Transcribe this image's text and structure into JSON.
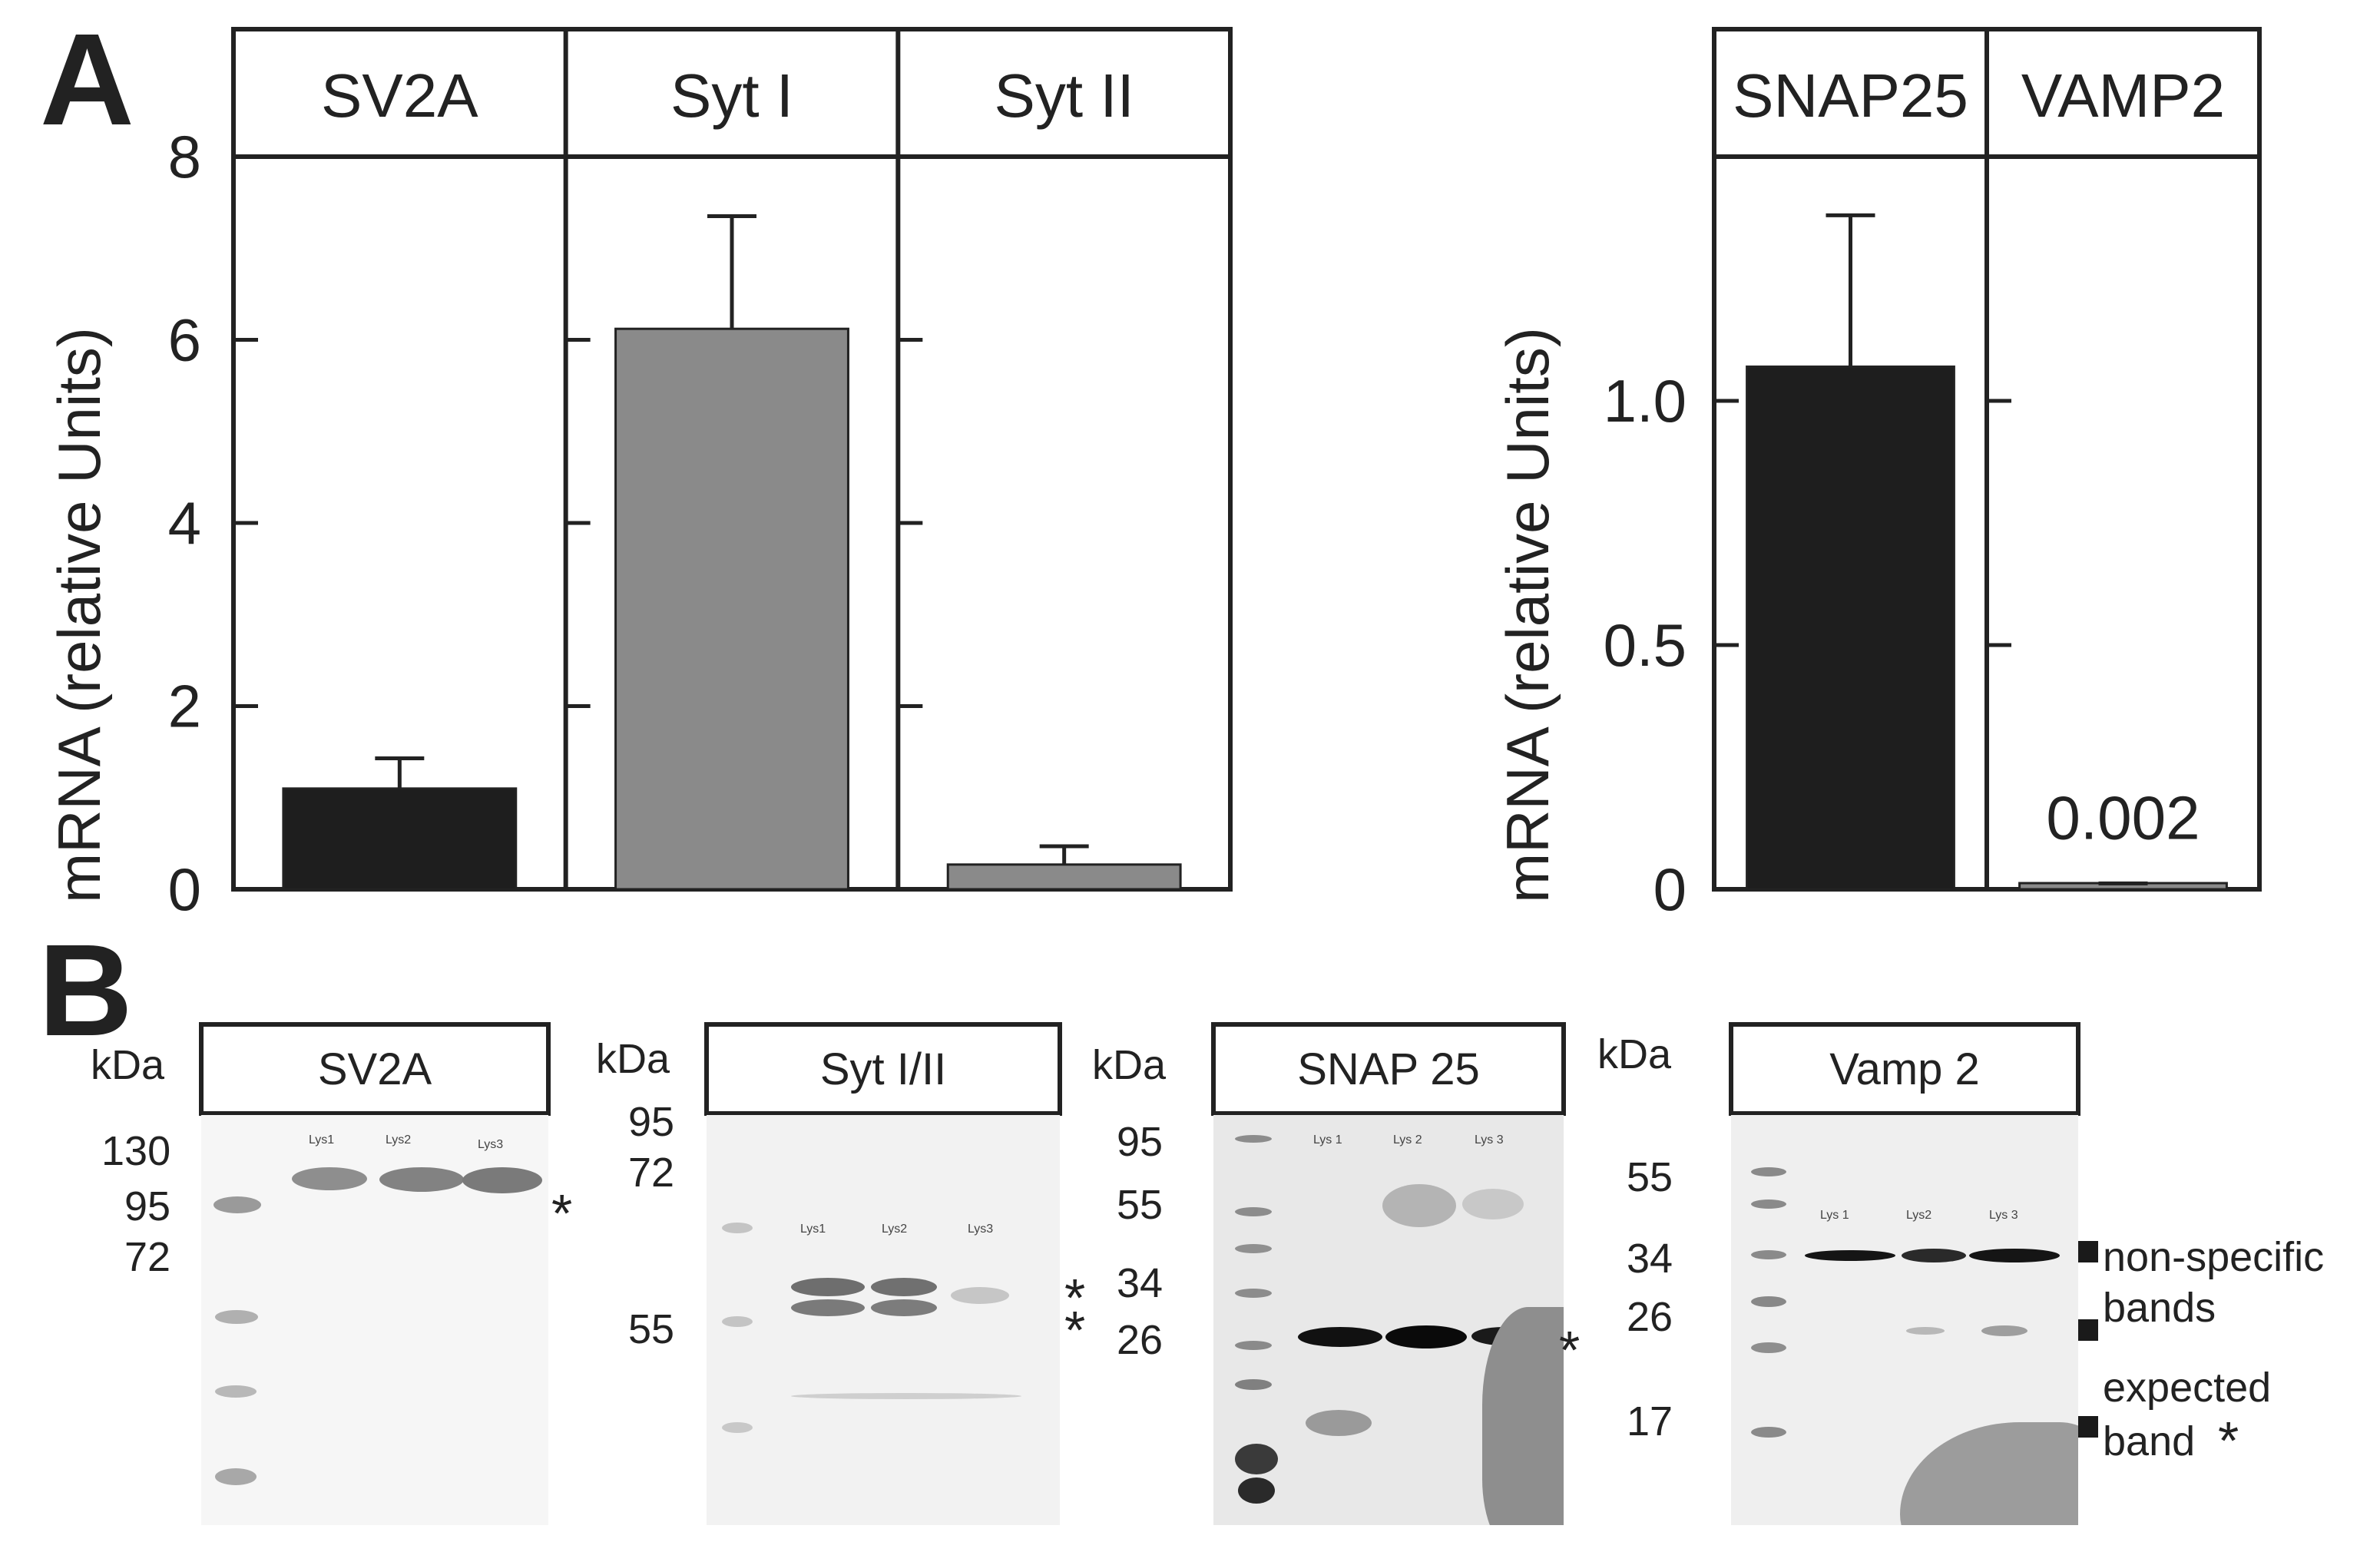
{
  "chart_data": [
    {
      "type": "bar",
      "panel": "A",
      "ylabel": "mRNA (relative Units)",
      "ylim": [
        0,
        8
      ],
      "yticks": [
        0,
        2,
        4,
        6,
        8
      ],
      "ytick_labels": [
        "0",
        "2",
        "4",
        "6",
        "8"
      ],
      "facets": [
        {
          "title": "SV2A",
          "value": 1.1,
          "error": 0.33,
          "color": "#1e1e1e"
        },
        {
          "title": "Syt I",
          "value": 6.12,
          "error": 1.23,
          "color": "#8a8a8a"
        },
        {
          "title": "Syt II",
          "value": 0.27,
          "error": 0.2,
          "color": "#8a8a8a"
        }
      ],
      "grid": false
    },
    {
      "type": "bar",
      "panel": "A",
      "ylabel": "mRNA (relative Units)",
      "ylim": [
        0,
        1.5
      ],
      "yticks": [
        0,
        0.5,
        1.0
      ],
      "ytick_labels": [
        "0",
        "0.5",
        "1.0"
      ],
      "facets": [
        {
          "title": "SNAP25",
          "value": 1.07,
          "error": 0.31,
          "color": "#1e1e1e"
        },
        {
          "title": "VAMP2",
          "value": 0.002,
          "error": 0.01,
          "color": "#8a8a8a",
          "annotation": "0.002"
        }
      ],
      "grid": false
    }
  ],
  "panel_labels": {
    "a": "A",
    "b": "B"
  },
  "blots": [
    {
      "title": "SV2A",
      "unit": "kDa",
      "markers": [
        "130",
        "95",
        "72"
      ],
      "lanes": [
        "Lys1",
        "Lys2",
        "Lys3"
      ],
      "marks": [
        "*"
      ]
    },
    {
      "title": "Syt I/II",
      "unit": "kDa",
      "markers": [
        "95",
        "72",
        "55"
      ],
      "lanes": [
        "Lys1",
        "Lys2",
        "Lys3"
      ],
      "marks": [
        "*",
        "*"
      ]
    },
    {
      "title": "SNAP 25",
      "unit": "kDa",
      "markers": [
        "95",
        "55",
        "34",
        "26"
      ],
      "lanes": [
        "Lys 1",
        "Lys 2",
        "Lys 3"
      ],
      "marks": [
        "*"
      ]
    },
    {
      "title": "Vamp 2",
      "unit": "kDa",
      "markers": [
        "55",
        "34",
        "26",
        "17"
      ],
      "lanes": [
        "Lys 1",
        "Lys2",
        "Lys 3"
      ],
      "annotations": {
        "nonspecific_line1": "non-specific",
        "nonspecific_line2": "bands",
        "expected_line1": "expected",
        "expected_line2": "band",
        "expected_mark": "*"
      }
    }
  ]
}
